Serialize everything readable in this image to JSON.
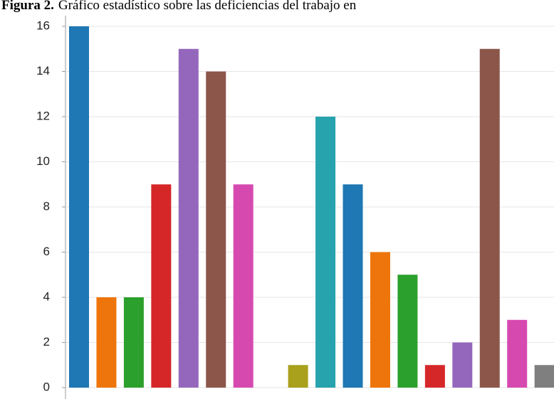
{
  "chart_data": {
    "type": "bar",
    "title_label": "Figura 2.",
    "title": "Gráfico estadístico sobre las deficiencias del trabajo en",
    "categories": [
      null,
      null,
      null,
      null,
      null,
      null,
      null,
      null,
      null,
      null,
      null,
      null,
      null,
      null,
      null,
      null,
      null,
      null
    ],
    "values": [
      16,
      4,
      4,
      9,
      15,
      14,
      9,
      0,
      1,
      12,
      9,
      6,
      5,
      1,
      2,
      15,
      3,
      1
    ],
    "colors": [
      "#1f77b4",
      "#ee750b",
      "#2ca02c",
      "#d62728",
      "#9467bd",
      "#8c564b",
      "#d64ab0",
      "#7f7f7f",
      "#a9a01c",
      "#26a3ad",
      "#1f77b4",
      "#ee750b",
      "#2ca02c",
      "#d62728",
      "#9467bd",
      "#8c564b",
      "#d64ab0",
      "#7f7f7f"
    ],
    "ylim": [
      0,
      16
    ],
    "yticks": [
      0,
      2,
      4,
      6,
      8,
      10,
      12,
      14,
      16
    ],
    "grid": true
  }
}
